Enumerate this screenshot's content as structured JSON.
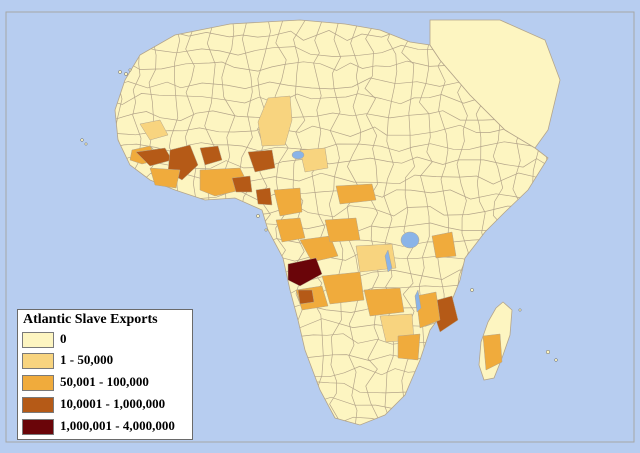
{
  "map": {
    "ocean_color": "#b7cdf0",
    "border_color": "#a6a6a6",
    "land_stroke": "#b4a58a",
    "lake_color": "#8ab4e8"
  },
  "legend": {
    "title": "Atlantic Slave Exports",
    "items": [
      {
        "label": "0",
        "color": "#fdf5c1"
      },
      {
        "label": "1 - 50,000",
        "color": "#f8d47f"
      },
      {
        "label": "50,001 - 100,000",
        "color": "#f0ab3c"
      },
      {
        "label": "10,0001 - 1,000,000",
        "color": "#b55a17"
      },
      {
        "label": "1,000,001 - 4,000,000",
        "color": "#6a0509"
      }
    ]
  }
}
